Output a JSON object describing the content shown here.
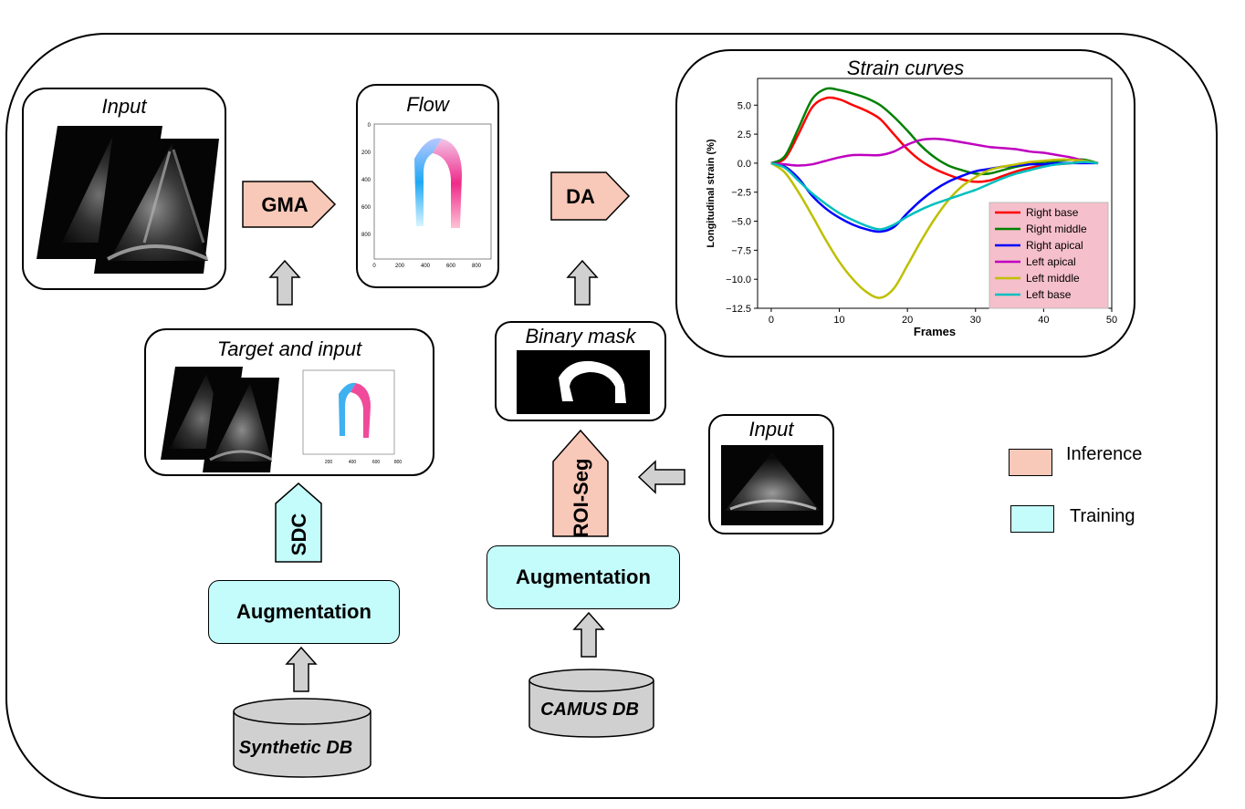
{
  "panels": {
    "input_top": "Input",
    "flow": "Flow",
    "strain": "Strain curves",
    "target": "Target and input",
    "binary_mask": "Binary mask",
    "input_right": "Input"
  },
  "blocks": {
    "gma": "GMA",
    "da": "DA",
    "sdc": "SDC",
    "roi_seg": "ROI-Seg",
    "augmentation_left": "Augmentation",
    "augmentation_right": "Augmentation",
    "synthetic_db": "Synthetic DB",
    "camus_db": "CAMUS DB"
  },
  "legend": {
    "inference": "Inference",
    "training": "Training",
    "inference_color": "#f8c8b8",
    "training_color": "#c4fbfb"
  },
  "flow_axes": {
    "y_ticks": [
      "0",
      "200",
      "400",
      "600",
      "800"
    ],
    "x_ticks": [
      "0",
      "200",
      "400",
      "600",
      "800"
    ]
  },
  "chart_data": {
    "type": "line",
    "xlabel": "Frames",
    "ylabel": "Longitudinal strain (%)",
    "xlim": [
      -2,
      50
    ],
    "ylim": [
      -12.5,
      7.3
    ],
    "x_ticks": [
      0,
      10,
      20,
      30,
      40,
      50
    ],
    "y_ticks": [
      5.0,
      2.5,
      0.0,
      -2.5,
      -5.0,
      -7.5,
      -10.0,
      -12.5
    ],
    "y_tick_labels": [
      "5.0",
      "2.5",
      "0.0",
      "−2.5",
      "−5.0",
      "−7.5",
      "−10.0",
      "−12.5"
    ],
    "legend_position": "lower-right",
    "grid": false,
    "series": [
      {
        "name": "Right base",
        "color": "#ff0000",
        "x": [
          0,
          2,
          4,
          6,
          8,
          10,
          12,
          14,
          16,
          18,
          20,
          22,
          24,
          26,
          28,
          30,
          32,
          34,
          36,
          38,
          40,
          42,
          44,
          46,
          48
        ],
        "y": [
          0,
          0.4,
          2.5,
          4.8,
          5.6,
          5.5,
          5.0,
          4.5,
          3.8,
          2.5,
          1.2,
          0.2,
          -0.5,
          -1.0,
          -1.4,
          -1.6,
          -1.5,
          -1.1,
          -0.7,
          -0.4,
          -0.2,
          -0.1,
          0.0,
          0.2,
          0.0
        ]
      },
      {
        "name": "Right middle",
        "color": "#008000",
        "x": [
          0,
          2,
          4,
          6,
          8,
          10,
          12,
          14,
          16,
          18,
          20,
          22,
          24,
          26,
          28,
          30,
          32,
          34,
          36,
          38,
          40,
          42,
          44,
          46,
          48
        ],
        "y": [
          0,
          0.6,
          3.0,
          5.5,
          6.4,
          6.3,
          6.0,
          5.6,
          5.0,
          4.0,
          2.8,
          1.5,
          0.5,
          -0.2,
          -0.6,
          -0.9,
          -0.9,
          -0.6,
          -0.3,
          -0.1,
          0.1,
          0.2,
          0.3,
          0.3,
          0.0
        ]
      },
      {
        "name": "Right apical",
        "color": "#0000ff",
        "x": [
          0,
          2,
          4,
          6,
          8,
          10,
          12,
          14,
          16,
          18,
          20,
          22,
          24,
          26,
          28,
          30,
          32,
          34,
          36,
          38,
          40,
          42,
          44,
          46,
          48
        ],
        "y": [
          0,
          -0.3,
          -1.3,
          -2.8,
          -3.9,
          -4.7,
          -5.3,
          -5.7,
          -5.9,
          -5.5,
          -4.3,
          -3.2,
          -2.3,
          -1.6,
          -1.1,
          -0.7,
          -0.5,
          -0.3,
          -0.2,
          -0.1,
          -0.1,
          0.0,
          0.0,
          0.0,
          0.0
        ]
      },
      {
        "name": "Left apical",
        "color": "#bf00bf",
        "x": [
          0,
          2,
          4,
          6,
          8,
          10,
          12,
          14,
          16,
          18,
          20,
          22,
          24,
          26,
          28,
          30,
          32,
          34,
          36,
          38,
          40,
          42,
          44,
          46,
          48
        ],
        "y": [
          0,
          -0.1,
          -0.2,
          -0.1,
          0.2,
          0.5,
          0.7,
          0.7,
          0.7,
          1.0,
          1.6,
          2.0,
          2.1,
          2.0,
          1.8,
          1.6,
          1.4,
          1.3,
          1.2,
          1.0,
          0.9,
          0.7,
          0.5,
          0.2,
          0.0
        ]
      },
      {
        "name": "Left middle",
        "color": "#bfbf00",
        "x": [
          0,
          2,
          4,
          6,
          8,
          10,
          12,
          14,
          16,
          18,
          20,
          22,
          24,
          26,
          28,
          30,
          32,
          34,
          36,
          38,
          40,
          42,
          44,
          46,
          48
        ],
        "y": [
          0,
          -0.8,
          -2.5,
          -4.5,
          -6.6,
          -8.5,
          -10.0,
          -11.1,
          -11.6,
          -10.8,
          -8.8,
          -6.7,
          -4.8,
          -3.2,
          -2.0,
          -1.2,
          -0.6,
          -0.3,
          -0.1,
          0.1,
          0.2,
          0.3,
          0.3,
          0.2,
          0.0
        ]
      },
      {
        "name": "Left base",
        "color": "#00bfbf",
        "x": [
          0,
          2,
          4,
          6,
          8,
          10,
          12,
          14,
          16,
          18,
          20,
          22,
          24,
          26,
          28,
          30,
          32,
          34,
          36,
          38,
          40,
          42,
          44,
          46,
          48
        ],
        "y": [
          0,
          -0.4,
          -1.5,
          -2.6,
          -3.5,
          -4.3,
          -4.9,
          -5.4,
          -5.7,
          -5.3,
          -4.6,
          -4.0,
          -3.5,
          -3.1,
          -2.7,
          -2.3,
          -1.8,
          -1.3,
          -0.9,
          -0.6,
          -0.3,
          -0.1,
          0.0,
          0.1,
          0.0
        ]
      }
    ]
  }
}
